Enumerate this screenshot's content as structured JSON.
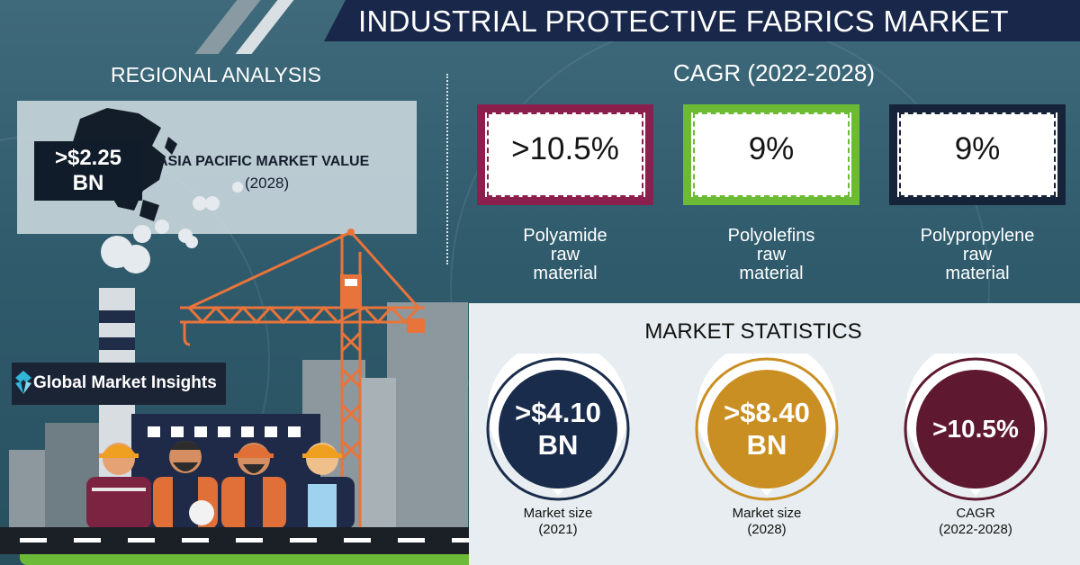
{
  "title": "INDUSTRIAL PROTECTIVE FABRICS MARKET",
  "regional": {
    "heading": "REGIONAL ANALYSIS",
    "badge_line1": ">$2.25",
    "badge_line2": "BN",
    "label": "ASIA PACIFIC MARKET VALUE",
    "year": "(2028)"
  },
  "cagr": {
    "heading": "CAGR (2022-2028)",
    "items": [
      {
        "value": ">10.5%",
        "label_line1": "Polyamide",
        "label_line2": "raw",
        "label_line3": "material",
        "color": "#8b1f4d"
      },
      {
        "value": "9%",
        "label_line1": "Polyolefins",
        "label_line2": "raw",
        "label_line3": "material",
        "color": "#6dbb34"
      },
      {
        "value": "9%",
        "label_line1": "Polypropylene",
        "label_line2": "raw",
        "label_line3": "material",
        "color": "#162338"
      }
    ]
  },
  "logo": {
    "text": "Global Market Insights"
  },
  "stats": {
    "heading": "MARKET STATISTICS",
    "items": [
      {
        "value_line1": ">$4.10",
        "value_line2": "BN",
        "caption_line1": "Market size",
        "caption_line2": "(2021)",
        "color": "#1a2c4b"
      },
      {
        "value_line1": ">$8.40",
        "value_line2": "BN",
        "caption_line1": "Market size",
        "caption_line2": "(2028)",
        "color": "#c98f22"
      },
      {
        "value_line1": ">10.5%",
        "value_line2": "",
        "caption_line1": "CAGR",
        "caption_line2": "(2022-2028)",
        "color": "#5e1930"
      }
    ]
  }
}
